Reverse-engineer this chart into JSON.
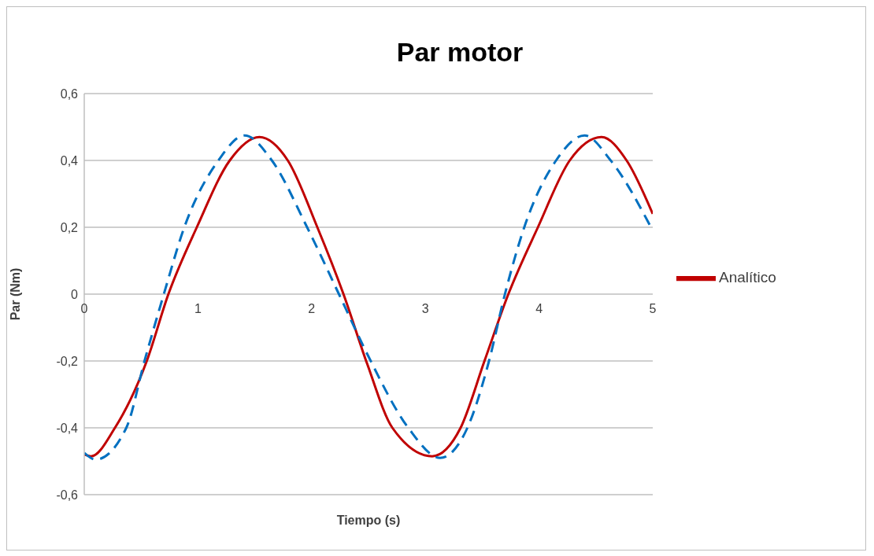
{
  "chart_data": {
    "type": "line",
    "title": "Par motor",
    "xlabel": "Tiempo (s)",
    "ylabel": "Par (Nm)",
    "xlim": [
      0,
      5
    ],
    "xticks": [
      0,
      1,
      2,
      3,
      4,
      5
    ],
    "ylim": [
      -0.6,
      0.6
    ],
    "yticks": [
      {
        "value": -0.6,
        "label": "-0,6"
      },
      {
        "value": -0.4,
        "label": "-0,4"
      },
      {
        "value": -0.2,
        "label": "-0,2"
      },
      {
        "value": 0,
        "label": "0"
      },
      {
        "value": 0.2,
        "label": "0,2"
      },
      {
        "value": 0.4,
        "label": "0,4"
      },
      {
        "value": 0.6,
        "label": "0,6"
      }
    ],
    "grid": "y",
    "legend": "right",
    "series": [
      {
        "name": "Analítico",
        "color": "#c00000",
        "line_style": "solid",
        "x": [
          0,
          0.06,
          0.27,
          0.55,
          0.74,
          0.99,
          1.28,
          1.54,
          1.79,
          2.05,
          2.28,
          2.49,
          2.71,
          3.06,
          3.31,
          3.52,
          3.73,
          3.99,
          4.27,
          4.55,
          4.77,
          5
        ],
        "values": [
          -0.48,
          -0.485,
          -0.4,
          -0.2,
          0,
          0.2,
          0.4,
          0.47,
          0.4,
          0.2,
          0,
          -0.21,
          -0.4,
          -0.485,
          -0.4,
          -0.2,
          0,
          0.2,
          0.4,
          0.47,
          0.4,
          0.24
        ]
      },
      {
        "color": "#0070c0",
        "line_style": "dashed",
        "x": [
          0,
          0.1,
          0.37,
          0.53,
          0.7,
          0.88,
          1.18,
          1.41,
          1.65,
          1.96,
          2.24,
          2.49,
          2.85,
          3.13,
          3.37,
          3.56,
          3.7,
          3.87,
          4.15,
          4.4,
          4.63,
          5
        ],
        "values": [
          -0.475,
          -0.495,
          -0.4,
          -0.2,
          0,
          0.2,
          0.4,
          0.475,
          0.4,
          0.2,
          0,
          -0.18,
          -0.4,
          -0.49,
          -0.4,
          -0.2,
          0,
          0.2,
          0.4,
          0.475,
          0.4,
          0.19
        ]
      }
    ]
  }
}
